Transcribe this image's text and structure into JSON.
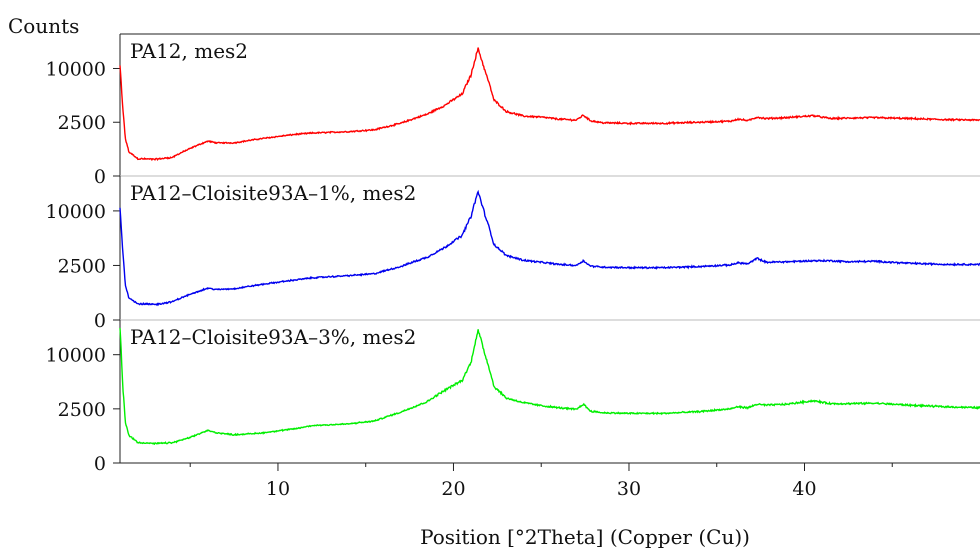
{
  "chart_data": {
    "type": "line",
    "title": "",
    "ylabel": "Counts",
    "xlabel": "Position [°2Theta] (Copper (Cu))",
    "xlim": [
      1,
      50
    ],
    "x_ticks": [
      10,
      20,
      30,
      40
    ],
    "y_ticks": [
      0,
      2500,
      10000
    ],
    "y_scale": "sqrt",
    "ylim": [
      0,
      16000
    ],
    "grid": false,
    "series": [
      {
        "name": "PA12, mes2",
        "color": "#ff0000",
        "x": [
          1.0,
          1.15,
          1.3,
          1.5,
          2.0,
          3.0,
          4.0,
          5.0,
          6.0,
          6.5,
          7.5,
          9.0,
          11.0,
          12.0,
          14.0,
          15.5,
          17.0,
          18.5,
          19.5,
          20.5,
          21.0,
          21.4,
          21.8,
          22.3,
          23.0,
          24.0,
          25.0,
          26.0,
          27.0,
          27.4,
          27.8,
          28.5,
          30.0,
          32.0,
          34.0,
          35.8,
          36.2,
          36.8,
          37.3,
          37.8,
          39.0,
          40.5,
          41.5,
          42.5,
          44.0,
          46.0,
          48.0,
          50.0
        ],
        "y": [
          10500,
          4000,
          1200,
          500,
          260,
          240,
          300,
          650,
          1050,
          950,
          950,
          1200,
          1500,
          1600,
          1700,
          1850,
          2400,
          3300,
          4300,
          5800,
          8800,
          14000,
          9500,
          5000,
          3600,
          3100,
          3000,
          2800,
          2700,
          3200,
          2650,
          2450,
          2400,
          2400,
          2500,
          2600,
          2800,
          2650,
          3000,
          2850,
          2950,
          3150,
          2850,
          2900,
          2950,
          2850,
          2750,
          2700
        ]
      },
      {
        "name": "PA12–Cloisite93A–1%, mes2",
        "color": "#0000ee",
        "x": [
          1.0,
          1.15,
          1.3,
          1.5,
          2.0,
          3.0,
          4.0,
          5.0,
          6.0,
          6.5,
          7.5,
          9.0,
          11.0,
          12.0,
          14.0,
          15.5,
          17.0,
          18.5,
          19.5,
          20.5,
          21.0,
          21.4,
          21.8,
          22.3,
          23.0,
          24.0,
          25.0,
          26.0,
          27.0,
          27.4,
          27.8,
          28.5,
          30.0,
          32.0,
          34.0,
          35.8,
          36.2,
          36.8,
          37.3,
          37.8,
          39.0,
          40.5,
          41.5,
          42.5,
          44.0,
          46.0,
          48.0,
          50.0
        ],
        "y": [
          10500,
          4000,
          1000,
          420,
          220,
          200,
          280,
          550,
          850,
          780,
          820,
          1050,
          1350,
          1500,
          1650,
          1800,
          2400,
          3300,
          4400,
          6000,
          9000,
          13800,
          9200,
          4800,
          3500,
          3000,
          2800,
          2600,
          2500,
          2950,
          2450,
          2350,
          2300,
          2300,
          2400,
          2550,
          2750,
          2650,
          3200,
          2800,
          2850,
          2950,
          2950,
          2850,
          2900,
          2700,
          2600,
          2600
        ]
      },
      {
        "name": "PA12–Cloisite93A–3%, mes2",
        "color": "#00ee00",
        "x": [
          1.0,
          1.15,
          1.3,
          1.5,
          2.0,
          3.0,
          4.0,
          5.0,
          6.0,
          6.5,
          7.5,
          9.0,
          11.0,
          12.0,
          14.0,
          15.5,
          17.0,
          18.5,
          19.5,
          20.5,
          21.0,
          21.4,
          21.8,
          22.3,
          23.0,
          24.0,
          25.0,
          26.0,
          27.0,
          27.4,
          27.8,
          28.5,
          30.0,
          32.0,
          34.0,
          35.8,
          36.2,
          36.8,
          37.3,
          37.8,
          39.0,
          40.5,
          41.5,
          42.5,
          44.0,
          46.0,
          48.0,
          50.0
        ],
        "y": [
          15500,
          5000,
          1400,
          650,
          360,
          320,
          350,
          550,
          900,
          780,
          680,
          760,
          1000,
          1200,
          1300,
          1500,
          2200,
          3200,
          4500,
          5800,
          8600,
          15000,
          10000,
          5000,
          3600,
          3100,
          2800,
          2600,
          2450,
          2950,
          2300,
          2150,
          2100,
          2100,
          2250,
          2500,
          2700,
          2600,
          2950,
          2850,
          2950,
          3300,
          3000,
          3000,
          3050,
          2850,
          2700,
          2600
        ]
      }
    ]
  }
}
